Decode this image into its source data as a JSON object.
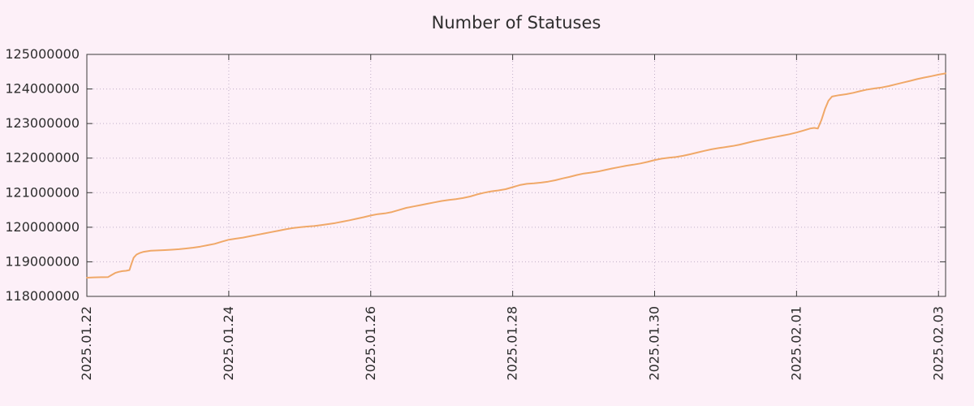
{
  "page": {
    "background": "#fdf0f8"
  },
  "chart_data": {
    "type": "line",
    "title": "Number of Statuses",
    "series_name": "statuses",
    "legend": "none",
    "grid": true,
    "x_start_label": "2025.01.22",
    "x_range_days": [
      0,
      12.1
    ],
    "ylim": [
      118000000,
      125000000
    ],
    "y_ticks": [
      118000000,
      119000000,
      120000000,
      121000000,
      122000000,
      123000000,
      124000000,
      125000000
    ],
    "x_ticks": [
      {
        "day": 0,
        "label": "2025.01.22"
      },
      {
        "day": 2,
        "label": "2025.01.24"
      },
      {
        "day": 4,
        "label": "2025.01.26"
      },
      {
        "day": 6,
        "label": "2025.01.28"
      },
      {
        "day": 8,
        "label": "2025.01.30"
      },
      {
        "day": 10,
        "label": "2025.02.01"
      },
      {
        "day": 12,
        "label": "2025.02.03"
      }
    ],
    "line_color": "#f0a868",
    "grid_color": "#c0aec8",
    "border_color": "#3a3a3a",
    "text_color": "#2e2e2e",
    "points": [
      [
        0.0,
        118540000
      ],
      [
        0.1,
        118550000
      ],
      [
        0.2,
        118555000
      ],
      [
        0.3,
        118560000
      ],
      [
        0.35,
        118620000
      ],
      [
        0.4,
        118680000
      ],
      [
        0.45,
        118710000
      ],
      [
        0.5,
        118730000
      ],
      [
        0.55,
        118740000
      ],
      [
        0.6,
        118760000
      ],
      [
        0.63,
        118950000
      ],
      [
        0.66,
        119120000
      ],
      [
        0.7,
        119210000
      ],
      [
        0.75,
        119260000
      ],
      [
        0.8,
        119290000
      ],
      [
        0.9,
        119320000
      ],
      [
        1.0,
        119330000
      ],
      [
        1.1,
        119340000
      ],
      [
        1.2,
        119350000
      ],
      [
        1.3,
        119365000
      ],
      [
        1.4,
        119385000
      ],
      [
        1.5,
        119410000
      ],
      [
        1.6,
        119440000
      ],
      [
        1.7,
        119480000
      ],
      [
        1.8,
        119520000
      ],
      [
        1.9,
        119580000
      ],
      [
        2.0,
        119640000
      ],
      [
        2.1,
        119670000
      ],
      [
        2.2,
        119700000
      ],
      [
        2.3,
        119740000
      ],
      [
        2.4,
        119780000
      ],
      [
        2.5,
        119820000
      ],
      [
        2.6,
        119860000
      ],
      [
        2.7,
        119900000
      ],
      [
        2.8,
        119940000
      ],
      [
        2.9,
        119975000
      ],
      [
        3.0,
        120000000
      ],
      [
        3.1,
        120020000
      ],
      [
        3.2,
        120035000
      ],
      [
        3.3,
        120060000
      ],
      [
        3.4,
        120090000
      ],
      [
        3.5,
        120120000
      ],
      [
        3.6,
        120160000
      ],
      [
        3.7,
        120200000
      ],
      [
        3.8,
        120245000
      ],
      [
        3.9,
        120290000
      ],
      [
        4.0,
        120340000
      ],
      [
        4.1,
        120380000
      ],
      [
        4.2,
        120400000
      ],
      [
        4.3,
        120440000
      ],
      [
        4.4,
        120500000
      ],
      [
        4.5,
        120560000
      ],
      [
        4.6,
        120600000
      ],
      [
        4.7,
        120640000
      ],
      [
        4.8,
        120680000
      ],
      [
        4.9,
        120720000
      ],
      [
        5.0,
        120760000
      ],
      [
        5.1,
        120790000
      ],
      [
        5.2,
        120815000
      ],
      [
        5.3,
        120845000
      ],
      [
        5.4,
        120890000
      ],
      [
        5.5,
        120950000
      ],
      [
        5.6,
        121000000
      ],
      [
        5.7,
        121040000
      ],
      [
        5.8,
        121065000
      ],
      [
        5.9,
        121100000
      ],
      [
        6.0,
        121160000
      ],
      [
        6.1,
        121220000
      ],
      [
        6.2,
        121255000
      ],
      [
        6.3,
        121270000
      ],
      [
        6.4,
        121290000
      ],
      [
        6.5,
        121320000
      ],
      [
        6.6,
        121360000
      ],
      [
        6.7,
        121410000
      ],
      [
        6.8,
        121455000
      ],
      [
        6.9,
        121510000
      ],
      [
        7.0,
        121555000
      ],
      [
        7.1,
        121580000
      ],
      [
        7.2,
        121610000
      ],
      [
        7.3,
        121655000
      ],
      [
        7.4,
        121700000
      ],
      [
        7.5,
        121740000
      ],
      [
        7.6,
        121780000
      ],
      [
        7.7,
        121810000
      ],
      [
        7.8,
        121845000
      ],
      [
        7.9,
        121890000
      ],
      [
        8.0,
        121945000
      ],
      [
        8.1,
        121985000
      ],
      [
        8.2,
        122010000
      ],
      [
        8.3,
        122030000
      ],
      [
        8.4,
        122065000
      ],
      [
        8.5,
        122110000
      ],
      [
        8.6,
        122160000
      ],
      [
        8.7,
        122210000
      ],
      [
        8.8,
        122255000
      ],
      [
        8.9,
        122290000
      ],
      [
        9.0,
        122320000
      ],
      [
        9.1,
        122350000
      ],
      [
        9.2,
        122390000
      ],
      [
        9.3,
        122440000
      ],
      [
        9.4,
        122490000
      ],
      [
        9.5,
        122530000
      ],
      [
        9.6,
        122570000
      ],
      [
        9.7,
        122610000
      ],
      [
        9.8,
        122650000
      ],
      [
        9.9,
        122690000
      ],
      [
        10.0,
        122740000
      ],
      [
        10.1,
        122800000
      ],
      [
        10.2,
        122860000
      ],
      [
        10.25,
        122875000
      ],
      [
        10.3,
        122855000
      ],
      [
        10.35,
        123100000
      ],
      [
        10.4,
        123420000
      ],
      [
        10.45,
        123660000
      ],
      [
        10.5,
        123780000
      ],
      [
        10.6,
        123820000
      ],
      [
        10.7,
        123850000
      ],
      [
        10.8,
        123890000
      ],
      [
        10.9,
        123940000
      ],
      [
        11.0,
        123985000
      ],
      [
        11.1,
        124015000
      ],
      [
        11.2,
        124045000
      ],
      [
        11.3,
        124085000
      ],
      [
        11.4,
        124135000
      ],
      [
        11.5,
        124185000
      ],
      [
        11.6,
        124235000
      ],
      [
        11.7,
        124285000
      ],
      [
        11.8,
        124330000
      ],
      [
        11.9,
        124370000
      ],
      [
        12.0,
        124415000
      ],
      [
        12.1,
        124450000
      ]
    ]
  }
}
